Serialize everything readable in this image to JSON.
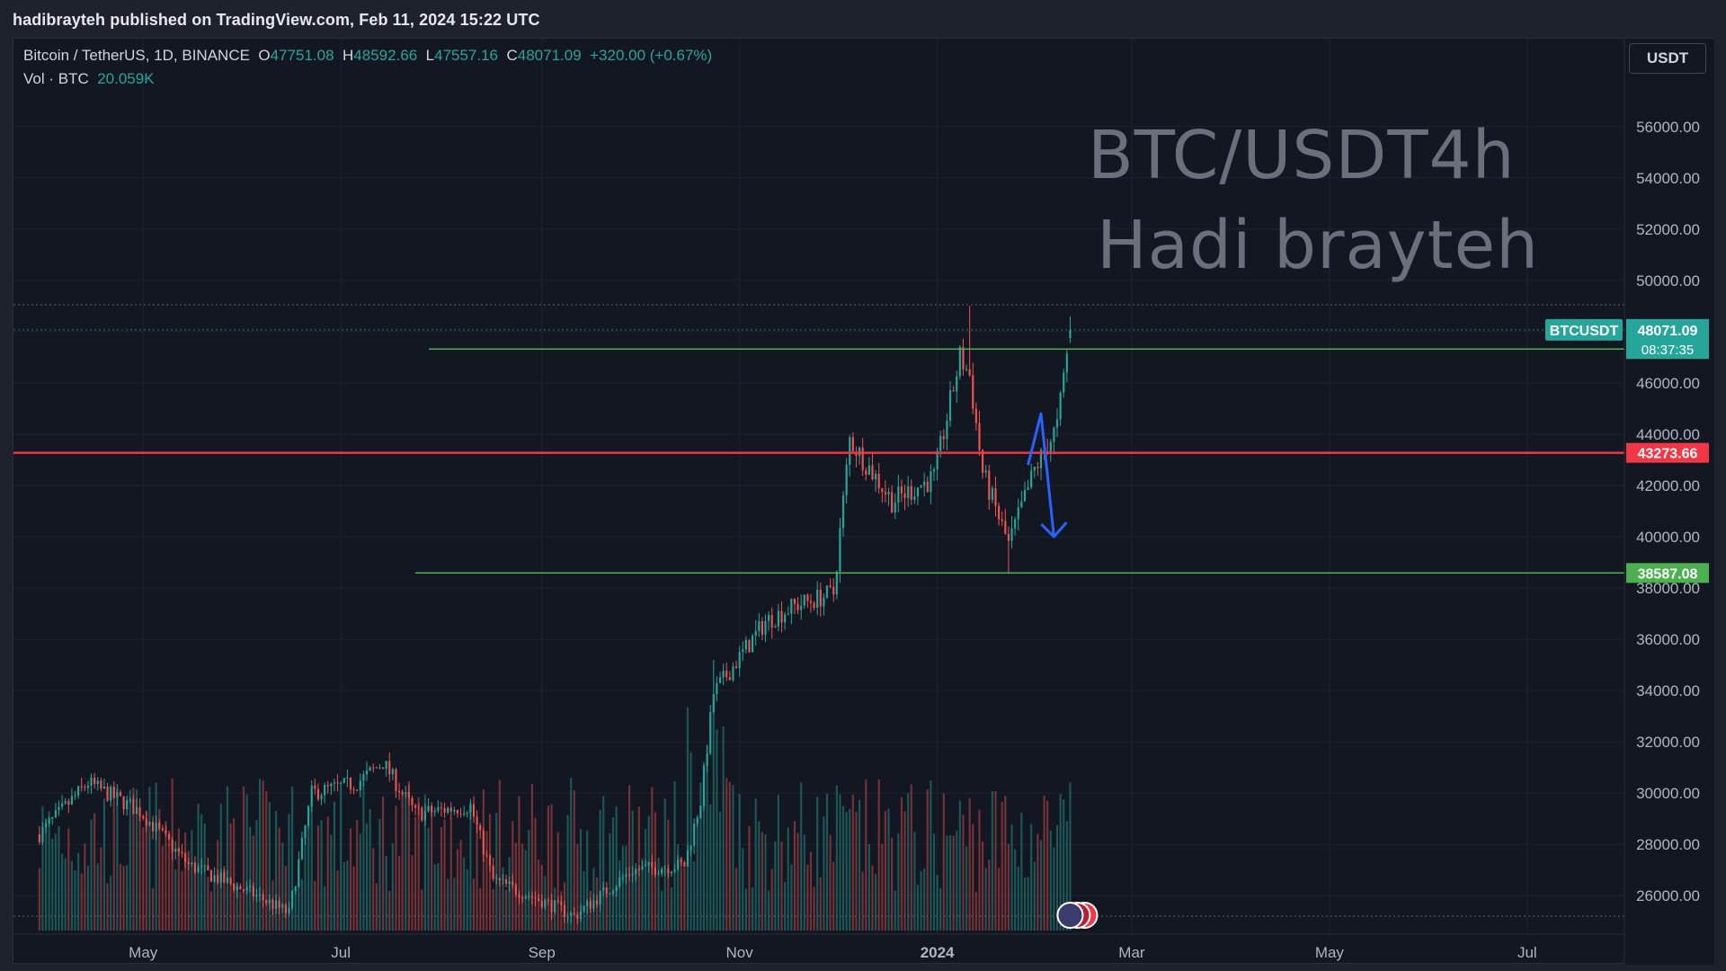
{
  "header": {
    "published": "hadibrayteh published on TradingView.com, Feb 11, 2024 15:22 UTC"
  },
  "legend": {
    "symbol": "Bitcoin / TetherUS, 1D, BINANCE",
    "o_label": "O",
    "o": "47751.08",
    "h_label": "H",
    "h": "48592.66",
    "l_label": "L",
    "l": "47557.16",
    "c_label": "C",
    "c": "48071.09",
    "change": "+320.00 (+0.67%)",
    "vol_label": "Vol · BTC",
    "vol": "20.059K"
  },
  "currency": "USDT",
  "watermark": [
    "BTC/USDT4h",
    "Hadi brayteh"
  ],
  "colors": {
    "up": "#26a69a",
    "down": "#ef5350",
    "red_line": "#f23645",
    "green_line": "#4caf50",
    "arrow": "#2962ff",
    "price_tag": "#26a69a"
  },
  "chart_data": {
    "type": "candlestick",
    "symbol_tag": "BTCUSDT",
    "current_price": "48071.09",
    "countdown": "08:37:35",
    "y_ticks": [
      "56000.00",
      "54000.00",
      "52000.00",
      "50000.00",
      "48000.00",
      "46000.00",
      "44000.00",
      "42000.00",
      "40000.00",
      "38000.00",
      "36000.00",
      "34000.00",
      "32000.00",
      "30000.00",
      "28000.00",
      "26000.00"
    ],
    "x_ticks": [
      "May",
      "Jul",
      "Sep",
      "Nov",
      "2024",
      "Mar",
      "May",
      "Jul"
    ],
    "ylim": [
      24500,
      57500
    ],
    "horizontal_lines": [
      {
        "value": 47322.24,
        "label": "47322.24",
        "color": "green"
      },
      {
        "value": 43273.66,
        "label": "43273.66",
        "color": "red"
      },
      {
        "value": 38587.08,
        "label": "38587.08",
        "color": "green"
      }
    ],
    "annotation_arrow": {
      "from": [
        "2024-01-29",
        42800
      ],
      "peak": [
        "2024-02-02",
        44800
      ],
      "to": [
        "2024-02-06",
        40000
      ]
    },
    "anchors": [
      {
        "date": "2023-03-30",
        "price": 28400
      },
      {
        "date": "2023-04-14",
        "price": 30400
      },
      {
        "date": "2023-04-30",
        "price": 29300
      },
      {
        "date": "2023-05-15",
        "price": 27200
      },
      {
        "date": "2023-06-05",
        "price": 26000
      },
      {
        "date": "2023-06-15",
        "price": 25300
      },
      {
        "date": "2023-06-22",
        "price": 30000
      },
      {
        "date": "2023-07-06",
        "price": 30400
      },
      {
        "date": "2023-07-14",
        "price": 31200
      },
      {
        "date": "2023-07-24",
        "price": 29200
      },
      {
        "date": "2023-08-10",
        "price": 29500
      },
      {
        "date": "2023-08-17",
        "price": 26600
      },
      {
        "date": "2023-09-01",
        "price": 25800
      },
      {
        "date": "2023-09-11",
        "price": 25200
      },
      {
        "date": "2023-09-29",
        "price": 27000
      },
      {
        "date": "2023-10-15",
        "price": 27200
      },
      {
        "date": "2023-10-20",
        "price": 29700
      },
      {
        "date": "2023-10-24",
        "price": 33900
      },
      {
        "date": "2023-11-09",
        "price": 36700
      },
      {
        "date": "2023-11-18",
        "price": 37300
      },
      {
        "date": "2023-11-30",
        "price": 37800
      },
      {
        "date": "2023-12-05",
        "price": 43800
      },
      {
        "date": "2023-12-18",
        "price": 41400
      },
      {
        "date": "2023-12-31",
        "price": 42300
      },
      {
        "date": "2024-01-08",
        "price": 47000
      },
      {
        "date": "2024-01-11",
        "price": 46300
      },
      {
        "date": "2024-01-15",
        "price": 42500
      },
      {
        "date": "2024-01-23",
        "price": 39700
      },
      {
        "date": "2024-01-31",
        "price": 42600
      },
      {
        "date": "2024-02-07",
        "price": 44300
      },
      {
        "date": "2024-02-11",
        "price": 48071
      }
    ],
    "x_range": [
      "2023-03-22",
      "2024-07-31"
    ]
  }
}
